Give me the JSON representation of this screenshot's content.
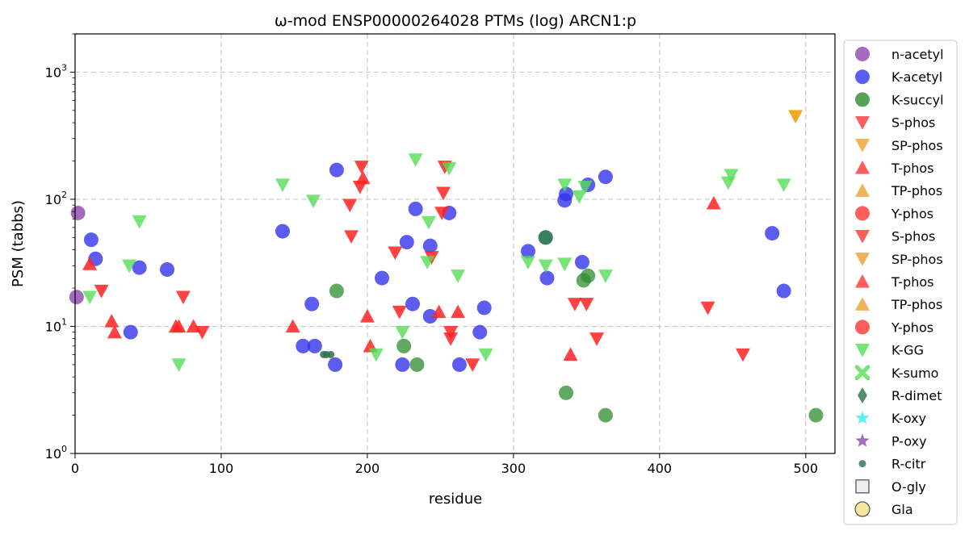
{
  "chart_data": {
    "type": "scatter",
    "title": "ω-mod ENSP00000264028 PTMs (log) ARCN1:p",
    "xlabel": "residue",
    "ylabel": "PSM (tabbs)",
    "xlim": [
      0,
      520
    ],
    "ylim": [
      1,
      2000
    ],
    "yscale": "log",
    "grid": true,
    "legend_position": "outside right",
    "x_ticks": [
      {
        "v": 0,
        "t": "0"
      },
      {
        "v": 100,
        "t": "100"
      },
      {
        "v": 200,
        "t": "200"
      },
      {
        "v": 300,
        "t": "300"
      },
      {
        "v": 400,
        "t": "400"
      },
      {
        "v": 500,
        "t": "500"
      }
    ],
    "y_ticks": [
      {
        "v": 1,
        "t": "10",
        "e": "0"
      },
      {
        "v": 10,
        "t": "10",
        "e": "1"
      },
      {
        "v": 100,
        "t": "10",
        "e": "2"
      },
      {
        "v": 1000,
        "t": "10",
        "e": "3"
      }
    ],
    "legend": [
      {
        "name": "n-acetyl",
        "marker": "circle",
        "color": "#8e44ad"
      },
      {
        "name": "K-acetyl",
        "marker": "circle",
        "color": "#3333ee"
      },
      {
        "name": "K-succyl",
        "marker": "circle",
        "color": "#2e8b2e"
      },
      {
        "name": "S-phos",
        "marker": "tri-down",
        "color": "#ff3333"
      },
      {
        "name": "SP-phos",
        "marker": "tri-down",
        "color": "#eea030"
      },
      {
        "name": "T-phos",
        "marker": "tri-up",
        "color": "#ff3333"
      },
      {
        "name": "TP-phos",
        "marker": "tri-up",
        "color": "#eea030"
      },
      {
        "name": "Y-phos",
        "marker": "circle",
        "color": "#ff3333"
      },
      {
        "name": "S-phos",
        "marker": "tri-down",
        "color": "#ff3333"
      },
      {
        "name": "SP-phos",
        "marker": "tri-down",
        "color": "#eea030"
      },
      {
        "name": "T-phos",
        "marker": "tri-up",
        "color": "#ff3333"
      },
      {
        "name": "TP-phos",
        "marker": "tri-up",
        "color": "#eea030"
      },
      {
        "name": "Y-phos",
        "marker": "circle",
        "color": "#ff3333"
      },
      {
        "name": "K-GG",
        "marker": "tri-down",
        "color": "#55dd55"
      },
      {
        "name": "K-sumo",
        "marker": "x",
        "color": "#55dd55"
      },
      {
        "name": "R-dimet",
        "marker": "diamond",
        "color": "#2f6f4f"
      },
      {
        "name": "K-oxy",
        "marker": "star",
        "color": "#33eeee"
      },
      {
        "name": "P-oxy",
        "marker": "star",
        "color": "#8e44ad"
      },
      {
        "name": "R-citr",
        "marker": "small-circle",
        "color": "#2f6f4f"
      },
      {
        "name": "O-gly",
        "marker": "square",
        "color": "#eeeeee"
      },
      {
        "name": "Gla",
        "marker": "circle-open",
        "color": "#f5e6a0"
      }
    ],
    "series": [
      {
        "name": "n-acetyl",
        "marker": "circle",
        "color": "#8e44ad",
        "alpha": 0.8,
        "points": [
          [
            2,
            78
          ],
          [
            1,
            17
          ]
        ]
      },
      {
        "name": "K-acetyl",
        "marker": "circle",
        "color": "#3333ee",
        "alpha": 0.8,
        "points": [
          [
            11,
            48
          ],
          [
            14,
            34
          ],
          [
            38,
            9
          ],
          [
            44,
            29
          ],
          [
            63,
            28
          ],
          [
            142,
            56
          ],
          [
            156,
            7
          ],
          [
            164,
            7
          ],
          [
            162,
            15
          ],
          [
            178,
            5
          ],
          [
            179,
            170
          ],
          [
            210,
            24
          ],
          [
            227,
            46
          ],
          [
            224,
            5
          ],
          [
            233,
            84
          ],
          [
            231,
            15
          ],
          [
            243,
            43
          ],
          [
            243,
            12
          ],
          [
            256,
            78
          ],
          [
            263,
            5
          ],
          [
            277,
            9
          ],
          [
            280,
            14
          ],
          [
            310,
            39
          ],
          [
            322,
            50
          ],
          [
            323,
            24
          ],
          [
            335,
            98
          ],
          [
            336,
            110
          ],
          [
            347,
            32
          ],
          [
            351,
            130
          ],
          [
            363,
            150
          ],
          [
            477,
            54
          ],
          [
            485,
            19
          ]
        ]
      },
      {
        "name": "K-succyl",
        "marker": "circle",
        "color": "#2e8b2e",
        "alpha": 0.75,
        "points": [
          [
            179,
            19
          ],
          [
            225,
            7
          ],
          [
            234,
            5
          ],
          [
            322,
            50
          ],
          [
            336,
            3
          ],
          [
            348,
            23
          ],
          [
            351,
            25
          ],
          [
            363,
            2
          ],
          [
            507,
            2
          ]
        ]
      },
      {
        "name": "S-phos",
        "marker": "tri-down",
        "color": "#ff2222",
        "alpha": 0.85,
        "points": [
          [
            18,
            19
          ],
          [
            74,
            17
          ],
          [
            87,
            9
          ],
          [
            188,
            90
          ],
          [
            189,
            51
          ],
          [
            195,
            125
          ],
          [
            196,
            180
          ],
          [
            219,
            38
          ],
          [
            222,
            13
          ],
          [
            244,
            35
          ],
          [
            252,
            112
          ],
          [
            251,
            78
          ],
          [
            253,
            180
          ],
          [
            257,
            9
          ],
          [
            257,
            8
          ],
          [
            272,
            5
          ],
          [
            342,
            15
          ],
          [
            350,
            15
          ],
          [
            357,
            8
          ],
          [
            433,
            14
          ],
          [
            457,
            6
          ]
        ]
      },
      {
        "name": "SP-phos",
        "marker": "tri-down",
        "color": "#ee9900",
        "alpha": 0.85,
        "points": [
          [
            493,
            450
          ]
        ]
      },
      {
        "name": "T-phos",
        "marker": "tri-up",
        "color": "#ff2222",
        "alpha": 0.85,
        "points": [
          [
            10,
            31
          ],
          [
            25,
            11
          ],
          [
            27,
            9
          ],
          [
            69,
            10
          ],
          [
            71,
            10
          ],
          [
            81,
            10
          ],
          [
            149,
            10
          ],
          [
            197,
            147
          ],
          [
            200,
            12
          ],
          [
            202,
            7
          ],
          [
            249,
            13
          ],
          [
            262,
            13
          ],
          [
            339,
            6
          ],
          [
            437,
            93
          ]
        ]
      },
      {
        "name": "K-GG",
        "marker": "tri-down",
        "color": "#55dd55",
        "alpha": 0.8,
        "points": [
          [
            10,
            17
          ],
          [
            37,
            30
          ],
          [
            44,
            67
          ],
          [
            71,
            5
          ],
          [
            142,
            130
          ],
          [
            163,
            97
          ],
          [
            206,
            6
          ],
          [
            224,
            9
          ],
          [
            233,
            205
          ],
          [
            241,
            32
          ],
          [
            242,
            66
          ],
          [
            256,
            175
          ],
          [
            262,
            25
          ],
          [
            281,
            6
          ],
          [
            310,
            32
          ],
          [
            322,
            30
          ],
          [
            335,
            31
          ],
          [
            335,
            130
          ],
          [
            345,
            105
          ],
          [
            349,
            125
          ],
          [
            363,
            25
          ],
          [
            447,
            135
          ],
          [
            449,
            155
          ],
          [
            485,
            130
          ]
        ]
      },
      {
        "name": "R-citr",
        "marker": "small-circle",
        "color": "#2f6f4f",
        "alpha": 0.85,
        "points": [
          [
            170,
            6
          ],
          [
            172,
            6
          ],
          [
            175,
            6
          ]
        ]
      }
    ]
  }
}
